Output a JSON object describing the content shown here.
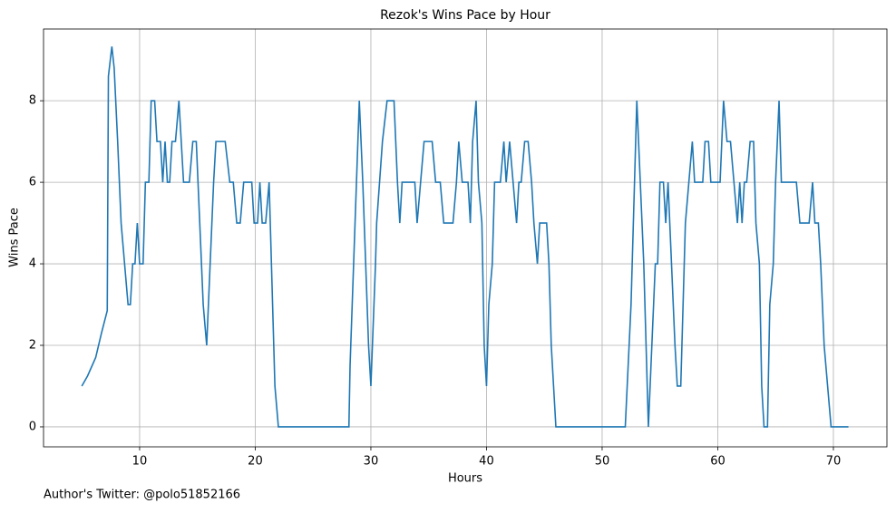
{
  "chart_data": {
    "type": "line",
    "title": "Rezok's Wins Pace by Hour",
    "x_label": "Hours",
    "y_label": "Wins Pace",
    "annotation": "Author's Twitter: @polo51852166",
    "x": [
      5.0,
      5.5,
      6.2,
      6.7,
      7.2,
      7.3,
      7.6,
      7.8,
      8.1,
      8.4,
      8.7,
      9.0,
      9.2,
      9.4,
      9.6,
      9.8,
      10.0,
      10.3,
      10.5,
      10.8,
      11.0,
      11.3,
      11.5,
      11.8,
      12.0,
      12.2,
      12.4,
      12.6,
      12.8,
      13.1,
      13.4,
      13.6,
      13.8,
      14.3,
      14.6,
      14.9,
      15.2,
      15.5,
      15.8,
      16.1,
      16.4,
      16.6,
      17.4,
      17.8,
      18.1,
      18.4,
      18.7,
      19.0,
      19.7,
      19.9,
      20.2,
      20.4,
      20.6,
      20.9,
      21.2,
      21.5,
      21.7,
      22.0,
      28.1,
      28.2,
      29.0,
      29.3,
      29.8,
      30.0,
      30.4,
      30.5,
      31.0,
      31.4,
      32.0,
      32.3,
      32.5,
      32.7,
      33.8,
      34.0,
      34.3,
      34.6,
      35.3,
      35.6,
      36.0,
      36.3,
      37.1,
      37.4,
      37.6,
      37.9,
      38.4,
      38.6,
      38.8,
      39.1,
      39.3,
      39.6,
      39.8,
      40.0,
      40.2,
      40.5,
      40.7,
      41.2,
      41.5,
      41.7,
      42.0,
      42.3,
      42.6,
      42.8,
      43.0,
      43.3,
      43.6,
      43.9,
      44.1,
      44.4,
      44.6,
      45.2,
      45.4,
      45.6,
      45.8,
      46.0,
      52.0,
      52.5,
      52.8,
      53.0,
      53.3,
      53.6,
      54.0,
      54.3,
      54.6,
      54.8,
      55.0,
      55.3,
      55.5,
      55.7,
      56.0,
      56.3,
      56.5,
      56.8,
      57.0,
      57.2,
      57.5,
      57.8,
      58.0,
      58.7,
      58.9,
      59.2,
      59.4,
      60.2,
      60.5,
      60.8,
      61.1,
      61.4,
      61.7,
      61.9,
      62.1,
      62.3,
      62.5,
      62.8,
      63.1,
      63.3,
      63.6,
      63.8,
      64.0,
      64.3,
      64.5,
      64.8,
      65.0,
      65.3,
      65.5,
      66.8,
      67.1,
      67.9,
      68.2,
      68.4,
      68.7,
      68.9,
      69.2,
      69.5,
      69.8,
      71.3
    ],
    "series": [
      {
        "name": "Wins Pace",
        "color": "#1f77b4",
        "values": [
          1.0,
          1.25,
          1.7,
          2.3,
          2.85,
          8.6,
          9.33,
          8.8,
          7.0,
          5.0,
          4.0,
          3.0,
          3.0,
          4.0,
          4.0,
          5.0,
          4.0,
          4.0,
          6.0,
          6.0,
          8.0,
          8.0,
          7.0,
          7.0,
          6.0,
          7.0,
          6.0,
          6.0,
          7.0,
          7.0,
          8.0,
          7.0,
          6.0,
          6.0,
          7.0,
          7.0,
          5.0,
          3.0,
          2.0,
          4.0,
          6.0,
          7.0,
          7.0,
          6.0,
          6.0,
          5.0,
          5.0,
          6.0,
          6.0,
          5.0,
          5.0,
          6.0,
          5.0,
          5.0,
          6.0,
          3.0,
          1.0,
          0.0,
          0.0,
          1.5,
          8.0,
          6.0,
          2.0,
          1.0,
          4.0,
          5.0,
          7.0,
          8.0,
          8.0,
          6.0,
          5.0,
          6.0,
          6.0,
          5.0,
          6.0,
          7.0,
          7.0,
          6.0,
          6.0,
          5.0,
          5.0,
          6.0,
          7.0,
          6.0,
          6.0,
          5.0,
          7.0,
          8.0,
          6.0,
          5.0,
          2.0,
          1.0,
          3.0,
          4.0,
          6.0,
          6.0,
          7.0,
          6.0,
          7.0,
          6.0,
          5.0,
          6.0,
          6.0,
          7.0,
          7.0,
          6.0,
          5.0,
          4.0,
          5.0,
          5.0,
          4.0,
          2.0,
          1.0,
          0.0,
          0.0,
          3.0,
          6.0,
          8.0,
          6.0,
          4.0,
          0.0,
          2.0,
          4.0,
          4.0,
          6.0,
          6.0,
          5.0,
          6.0,
          4.0,
          2.0,
          1.0,
          1.0,
          3.0,
          5.0,
          6.0,
          7.0,
          6.0,
          6.0,
          7.0,
          7.0,
          6.0,
          6.0,
          8.0,
          7.0,
          7.0,
          6.0,
          5.0,
          6.0,
          5.0,
          6.0,
          6.0,
          7.0,
          7.0,
          5.0,
          4.0,
          1.0,
          0.0,
          0.0,
          3.0,
          4.0,
          6.0,
          8.0,
          6.0,
          6.0,
          5.0,
          5.0,
          6.0,
          5.0,
          5.0,
          4.0,
          2.0,
          1.0,
          0.0,
          0.0
        ]
      }
    ],
    "xlim": [
      1.69,
      74.63
    ],
    "ylim": [
      -0.49,
      9.76
    ],
    "xticks": [
      10,
      20,
      30,
      40,
      50,
      60,
      70
    ],
    "yticks": [
      0,
      2,
      4,
      6,
      8
    ],
    "grid": true
  }
}
